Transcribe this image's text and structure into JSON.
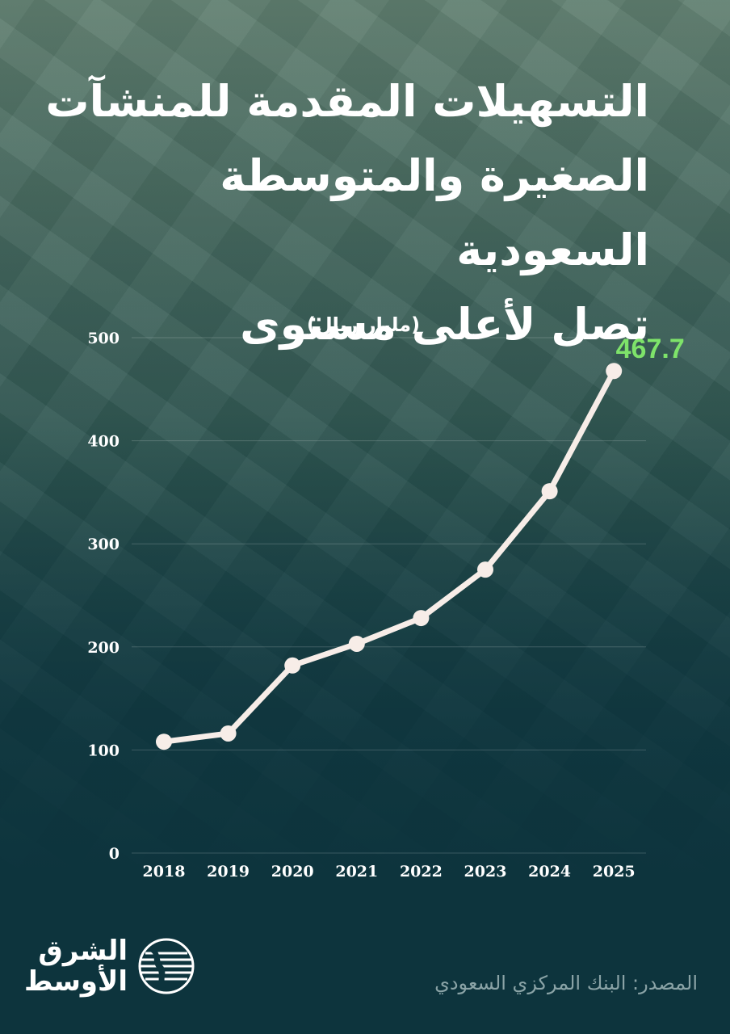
{
  "title_lines": [
    "التسهيلات المقدمة للمنشآت",
    "الصغيرة والمتوسطة السعودية",
    "تصل لأعلى مستوى"
  ],
  "unit_label": "(مليار ريال)",
  "source": "المصدر: البنك المركزي السعودي",
  "logo": {
    "line1": "الشرق",
    "line2": "الأوسط"
  },
  "colors": {
    "line": "#f7ede8",
    "highlight": "#7ee36a",
    "axis_text": "#ffffff",
    "grid": "rgba(255,255,255,0.18)"
  },
  "chart_data": {
    "type": "line",
    "x": [
      "2018",
      "2019",
      "2020",
      "2021",
      "2022",
      "2023",
      "2024",
      "2025"
    ],
    "series": [
      {
        "values": [
          108,
          116,
          182,
          203,
          228,
          275,
          351,
          467.7
        ]
      }
    ],
    "y_ticks": [
      0,
      100,
      200,
      300,
      400,
      500
    ],
    "ylim": [
      0,
      500
    ],
    "annotations": [
      {
        "x": "2025",
        "text": "467.7"
      }
    ],
    "grid": true
  }
}
